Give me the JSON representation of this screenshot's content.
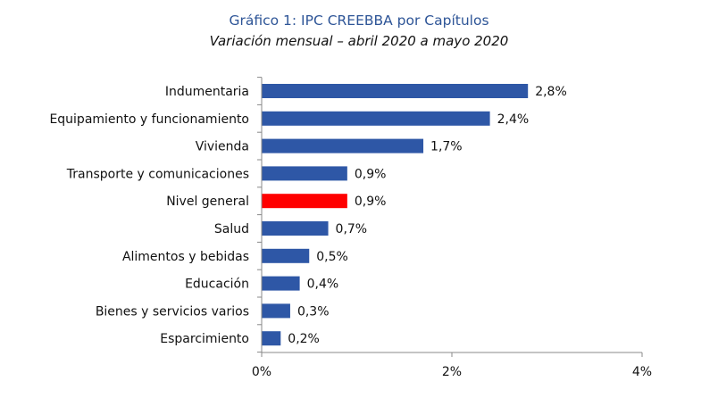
{
  "chart_data": {
    "type": "bar",
    "orientation": "horizontal",
    "title": "Gráfico 1: IPC CREEBBA por Capítulos",
    "subtitle": "Variación mensual – abril 2020 a mayo 2020",
    "categories": [
      "Indumentaria",
      "Equipamiento y funcionamiento",
      "Vivienda",
      "Transporte y comunicaciones",
      "Nivel general",
      "Salud",
      "Alimentos y bebidas",
      "Educación",
      "Bienes y servicios varios",
      "Esparcimiento"
    ],
    "values": [
      2.8,
      2.4,
      1.7,
      0.9,
      0.9,
      0.7,
      0.5,
      0.4,
      0.3,
      0.2
    ],
    "value_labels": [
      "2,8%",
      "2,4%",
      "1,7%",
      "0,9%",
      "0,9%",
      "0,7%",
      "0,5%",
      "0,4%",
      "0,3%",
      "0,2%"
    ],
    "xlim": [
      0,
      4
    ],
    "xticks": [
      0,
      2,
      4
    ],
    "xtick_labels": [
      "0%",
      "2%",
      "4%"
    ],
    "highlight_category": "Nivel general",
    "bar_color": "#2E57A6",
    "highlight_color": "#FF0000",
    "title_color": "#2E5597",
    "grid": false,
    "legend": "none"
  }
}
